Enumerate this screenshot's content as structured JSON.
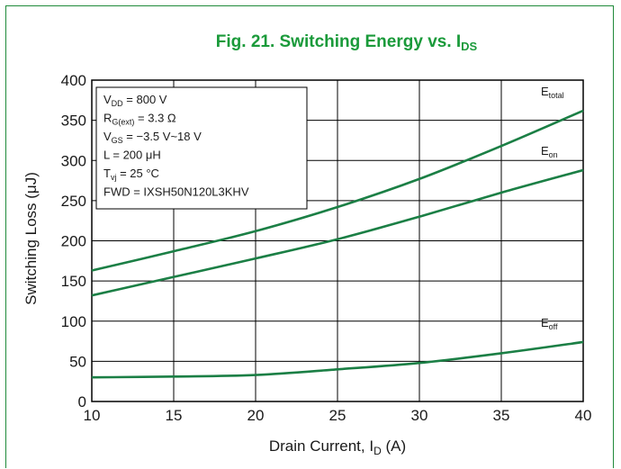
{
  "chart_data": {
    "type": "line",
    "title_main": "Fig. 21. Switching Energy vs. I",
    "title_sub": "DS",
    "xlabel_main": "Drain Current, I",
    "xlabel_sub": "D",
    "xlabel_unit": " (A)",
    "ylabel": "Switching Loss (μJ)",
    "xlim": [
      10,
      40
    ],
    "ylim": [
      0,
      400
    ],
    "xticks": [
      "10",
      "15",
      "20",
      "25",
      "30",
      "35",
      "40"
    ],
    "yticks": [
      "0",
      "50",
      "100",
      "150",
      "200",
      "250",
      "300",
      "350",
      "400"
    ],
    "grid": true,
    "line_color": "#1b7f45",
    "title_color": "#1a9a3a",
    "conditions": [
      {
        "main": "V",
        "sub": "DD",
        "rest": " = 800 V"
      },
      {
        "main": "R",
        "sub": "G(ext)",
        "rest": " = 3.3 Ω"
      },
      {
        "main": "V",
        "sub": "GS",
        "rest": " = −3.5 V~18 V"
      },
      {
        "main": "L = 200 μH",
        "sub": "",
        "rest": ""
      },
      {
        "main": "T",
        "sub": "vj",
        "rest": " = 25 °C"
      },
      {
        "main": "FWD = IXSH50N120L3KHV",
        "sub": "",
        "rest": ""
      }
    ],
    "series": [
      {
        "name_main": "E",
        "name_sub": "total",
        "x": [
          10,
          15,
          20,
          25,
          30,
          35,
          40
        ],
        "y": [
          163,
          187,
          212,
          242,
          277,
          318,
          362
        ]
      },
      {
        "name_main": "E",
        "name_sub": "on",
        "x": [
          10,
          15,
          20,
          25,
          30,
          35,
          40
        ],
        "y": [
          132,
          155,
          178,
          202,
          230,
          260,
          288
        ]
      },
      {
        "name_main": "E",
        "name_sub": "off",
        "x": [
          10,
          15,
          20,
          25,
          30,
          35,
          40
        ],
        "y": [
          30,
          31,
          33,
          40,
          48,
          60,
          74
        ]
      }
    ]
  }
}
